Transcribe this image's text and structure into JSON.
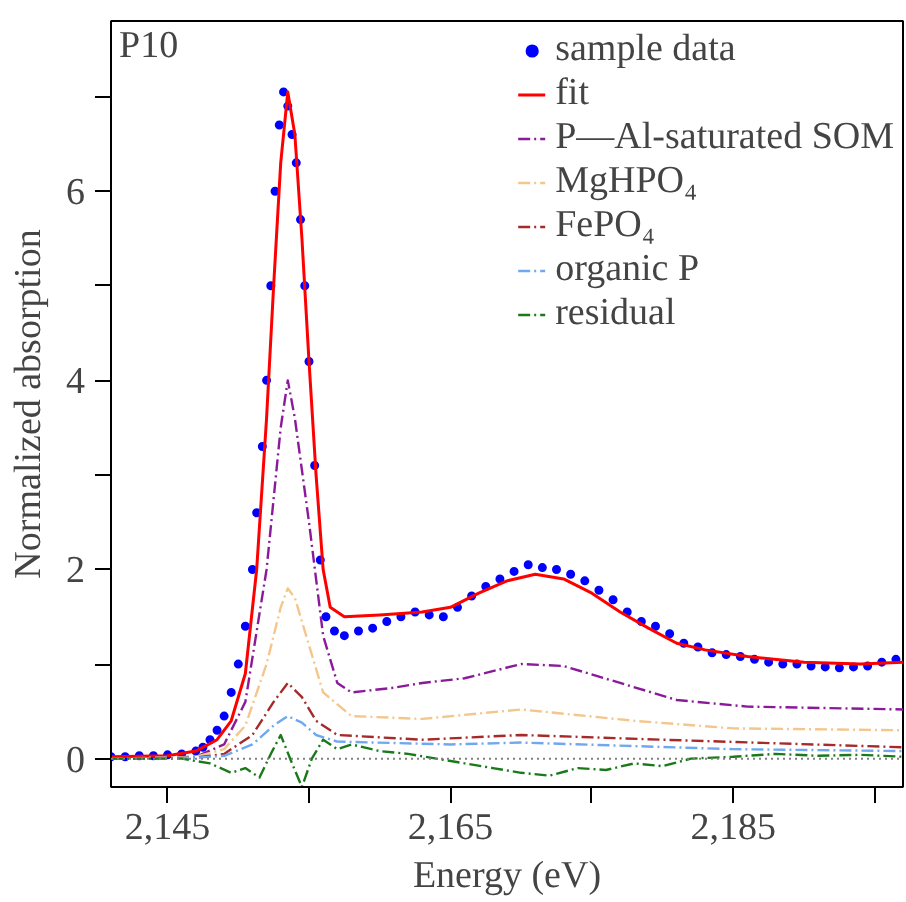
{
  "chart_data": {
    "type": "line",
    "xlabel": "Energy (eV)",
    "ylabel": "Normalized absorption",
    "annotations": [
      "P10"
    ],
    "xlim": [
      2141,
      2197
    ],
    "ylim": [
      -0.3,
      7.8
    ],
    "xticks": [
      {
        "value": 2145,
        "label": "2,145"
      },
      {
        "value": 2155,
        "label": null
      },
      {
        "value": 2165,
        "label": "2,165"
      },
      {
        "value": 2175,
        "label": null
      },
      {
        "value": 2185,
        "label": "2,185"
      },
      {
        "value": 2195,
        "label": null
      }
    ],
    "yticks": [
      0,
      {
        "value": 1,
        "label": null
      },
      2,
      {
        "value": 3,
        "label": null
      },
      4,
      {
        "value": 5,
        "label": null
      },
      6,
      {
        "value": 7,
        "label": null
      }
    ],
    "grid": false,
    "legend": "top right",
    "ref_lines": [
      {
        "axis": "y",
        "value": 0,
        "color": "#808080",
        "line_style": "dotted"
      }
    ],
    "series": [
      {
        "name": "sample data",
        "type": "scatter",
        "marker": "circle",
        "color": "#0000ff",
        "x": [
          2141,
          2142,
          2143,
          2144,
          2145,
          2146,
          2147,
          2147.5,
          2148,
          2148.5,
          2149,
          2149.5,
          2150,
          2150.5,
          2151,
          2151.3,
          2151.7,
          2152,
          2152.3,
          2152.6,
          2152.9,
          2153.2,
          2153.5,
          2153.8,
          2154.1,
          2154.4,
          2154.7,
          2155,
          2155.4,
          2155.8,
          2156.2,
          2156.8,
          2157.5,
          2158.5,
          2159.5,
          2160.5,
          2161.5,
          2162.5,
          2163.5,
          2164.5,
          2165.5,
          2166.5,
          2167.5,
          2168.5,
          2169.5,
          2170.5,
          2171.5,
          2172.5,
          2173.5,
          2174.5,
          2175.5,
          2176.5,
          2177.5,
          2178.5,
          2179.5,
          2180.5,
          2181.5,
          2182.5,
          2183.5,
          2184.5,
          2185.5,
          2186.5,
          2187.5,
          2188.5,
          2189.5,
          2190.5,
          2191.5,
          2192.5,
          2193.5,
          2194.5,
          2195.5,
          2196.5
        ],
        "values": [
          0.02,
          0.02,
          0.03,
          0.03,
          0.04,
          0.05,
          0.08,
          0.12,
          0.2,
          0.3,
          0.45,
          0.7,
          1.0,
          1.4,
          2.0,
          2.6,
          3.3,
          4.0,
          5.0,
          6.0,
          6.7,
          7.05,
          6.9,
          6.6,
          6.3,
          5.7,
          5.0,
          4.2,
          3.1,
          2.1,
          1.5,
          1.35,
          1.3,
          1.35,
          1.38,
          1.45,
          1.5,
          1.55,
          1.52,
          1.5,
          1.6,
          1.72,
          1.82,
          1.9,
          1.98,
          2.05,
          2.02,
          2.0,
          1.95,
          1.88,
          1.78,
          1.68,
          1.55,
          1.45,
          1.4,
          1.32,
          1.22,
          1.18,
          1.12,
          1.1,
          1.08,
          1.05,
          1.02,
          1.0,
          1.0,
          0.98,
          0.97,
          0.96,
          0.97,
          0.98,
          1.02,
          1.05
        ]
      },
      {
        "name": "fit",
        "line_style": "solid",
        "color": "#ff0000",
        "x": [
          2141,
          2145,
          2147,
          2148.5,
          2149.5,
          2150.5,
          2151.3,
          2152,
          2152.5,
          2153,
          2153.5,
          2154,
          2154.5,
          2155,
          2155.5,
          2156,
          2156.5,
          2157.5,
          2160,
          2163,
          2165,
          2167,
          2169,
          2171,
          2173,
          2175,
          2177,
          2179,
          2181,
          2183,
          2186,
          2190,
          2194,
          2197
        ],
        "values": [
          0.02,
          0.03,
          0.08,
          0.2,
          0.4,
          0.9,
          2.0,
          3.6,
          5.0,
          6.3,
          7.05,
          6.6,
          5.5,
          4.2,
          3.0,
          2.0,
          1.6,
          1.5,
          1.52,
          1.55,
          1.6,
          1.75,
          1.88,
          1.95,
          1.9,
          1.75,
          1.55,
          1.38,
          1.22,
          1.15,
          1.08,
          1.02,
          1.0,
          1.02
        ]
      },
      {
        "name": "P—Al-saturated SOM",
        "line_style": "dashed",
        "color": "#8b1a9b",
        "x": [
          2141,
          2147,
          2149,
          2150.5,
          2152,
          2153,
          2153.5,
          2154,
          2155,
          2156,
          2157,
          2158,
          2161,
          2163,
          2166,
          2170,
          2173,
          2177,
          2181,
          2186,
          2197
        ],
        "values": [
          0.0,
          0.02,
          0.15,
          0.6,
          2.0,
          3.5,
          4.0,
          3.6,
          2.5,
          1.3,
          0.8,
          0.7,
          0.75,
          0.8,
          0.85,
          1.0,
          0.98,
          0.8,
          0.62,
          0.55,
          0.52
        ]
      },
      {
        "name": "MgHPO₄",
        "line_style": "dashed",
        "color": "#f5c68c",
        "x": [
          2141,
          2147,
          2149,
          2150.5,
          2152,
          2153,
          2153.5,
          2154,
          2155,
          2156,
          2158,
          2163,
          2170,
          2178,
          2185,
          2197
        ],
        "values": [
          0.0,
          0.02,
          0.1,
          0.35,
          1.0,
          1.6,
          1.8,
          1.7,
          1.2,
          0.7,
          0.45,
          0.42,
          0.52,
          0.4,
          0.32,
          0.3
        ]
      },
      {
        "name": "FePO₄",
        "line_style": "dashed",
        "color": "#a52a2a",
        "x": [
          2141,
          2147,
          2149,
          2151,
          2152.5,
          2153.5,
          2154.5,
          2155.5,
          2157,
          2163,
          2170,
          2180,
          2197
        ],
        "values": [
          0.0,
          0.01,
          0.05,
          0.25,
          0.6,
          0.8,
          0.65,
          0.4,
          0.25,
          0.2,
          0.25,
          0.2,
          0.12
        ]
      },
      {
        "name": "organic P",
        "line_style": "dashed",
        "color": "#6fa8f0",
        "x": [
          2141,
          2147,
          2149,
          2151,
          2152.5,
          2153.5,
          2154.5,
          2155.5,
          2157,
          2165,
          2170,
          2185,
          2197
        ],
        "values": [
          0.0,
          0.01,
          0.03,
          0.15,
          0.35,
          0.45,
          0.38,
          0.25,
          0.18,
          0.15,
          0.17,
          0.1,
          0.08
        ]
      },
      {
        "name": "residual",
        "line_style": "dashed",
        "color": "#1a7a1a",
        "x": [
          2141,
          2146,
          2148,
          2149.5,
          2150.5,
          2151.5,
          2152.3,
          2153,
          2153.8,
          2154.5,
          2155.2,
          2156,
          2157,
          2158,
          2160,
          2162,
          2164,
          2166,
          2168,
          2170,
          2172,
          2174,
          2176,
          2178,
          2180,
          2182,
          2185,
          2188,
          2191,
          2194,
          2197
        ],
        "values": [
          0.0,
          0.0,
          -0.05,
          -0.15,
          -0.1,
          -0.2,
          0.05,
          0.25,
          -0.05,
          -0.3,
          0.0,
          0.2,
          0.1,
          0.15,
          0.08,
          0.05,
          0.0,
          -0.05,
          -0.1,
          -0.15,
          -0.18,
          -0.1,
          -0.12,
          -0.05,
          -0.08,
          0.0,
          0.02,
          0.05,
          0.03,
          0.04,
          0.02
        ]
      }
    ]
  }
}
